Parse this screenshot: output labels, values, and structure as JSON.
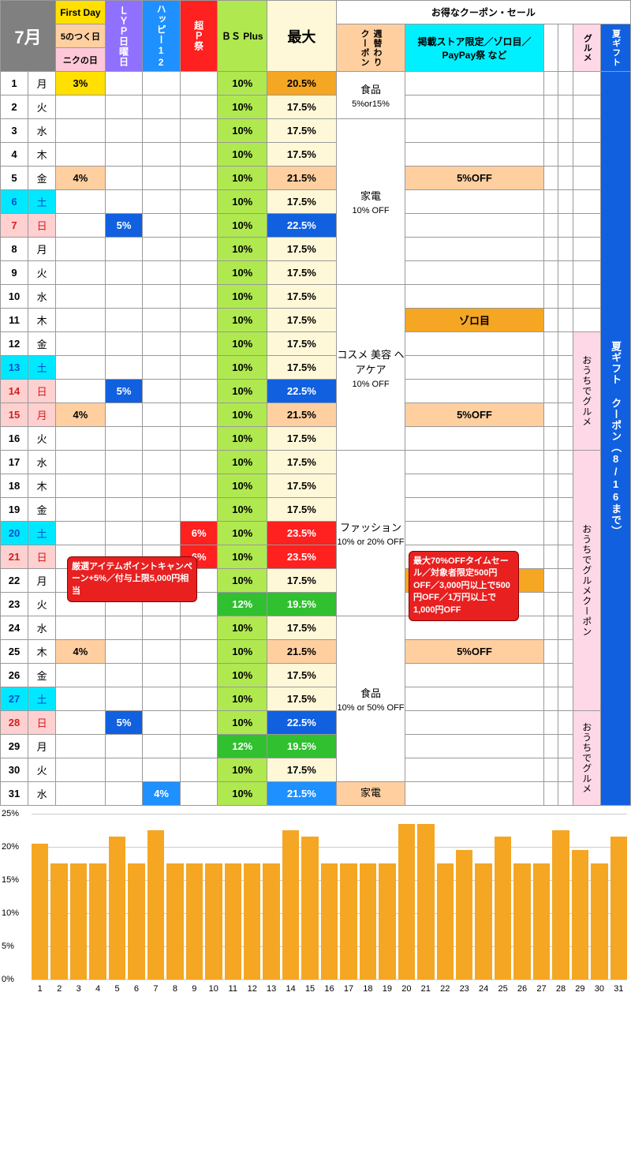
{
  "colors": {
    "gray": "#808080",
    "yellow": "#ffe000",
    "pink": "#ffc8d8",
    "purple": "#9070ff",
    "blue": "#1e90ff",
    "bluedk": "#1060e0",
    "red": "#ff2020",
    "lime": "#b0e850",
    "green": "#30c030",
    "cream": "#fff8d8",
    "peach": "#ffcfa0",
    "orange": "#f5a623",
    "cyan": "#00f0ff",
    "lightpink": "#ffd8e8",
    "white": "#ffffff",
    "sat": "#00e8ff",
    "sun": "#ffd0d0",
    "txtred": "#d02020",
    "txtblue": "#0050d0"
  },
  "month": "7月",
  "hdr": {
    "firstday": "First Day",
    "five": "5のつく日",
    "niku": "ニクの日",
    "lyp": "ＬＹＰ日曜日",
    "happy": "ハッピー12",
    "chop": "超Ｐ祭",
    "bsplus": "ＢＳ Plus",
    "max": "最大",
    "coupon_title": "お得なクーポン・セール",
    "weekly": "週替わりクーポン",
    "store": "掲載ストア限定／ゾロ目／PayPay祭 など",
    "gourmet": "グルメ",
    "summer": "夏ギフト"
  },
  "days": [
    "月",
    "火",
    "水",
    "木",
    "金",
    "土",
    "日",
    "月",
    "火",
    "水",
    "木",
    "金",
    "土",
    "日",
    "月",
    "火",
    "水",
    "木",
    "金",
    "土",
    "日",
    "月",
    "火",
    "水",
    "木",
    "金",
    "土",
    "日",
    "月",
    "火",
    "水"
  ],
  "rows": [
    {
      "d": 1,
      "c1": "3%",
      "c1c": "yellow",
      "bs": "10%",
      "mx": "20.5%",
      "mxc": "orange"
    },
    {
      "d": 2,
      "bs": "10%",
      "mx": "17.5%",
      "mxc": "cream"
    },
    {
      "d": 3,
      "bs": "10%",
      "mx": "17.5%",
      "mxc": "cream"
    },
    {
      "d": 4,
      "bs": "10%",
      "mx": "17.5%",
      "mxc": "cream"
    },
    {
      "d": 5,
      "c1": "4%",
      "c1c": "peach",
      "bs": "10%",
      "mx": "21.5%",
      "mxc": "peach"
    },
    {
      "d": 6,
      "sat": 1,
      "bs": "10%",
      "mx": "17.5%",
      "mxc": "cream"
    },
    {
      "d": 7,
      "sun": 1,
      "lyp": "5%",
      "bs": "10%",
      "mx": "22.5%",
      "mxc": "bluedk",
      "mxt": "#fff"
    },
    {
      "d": 8,
      "bs": "10%",
      "mx": "17.5%",
      "mxc": "cream"
    },
    {
      "d": 9,
      "bs": "10%",
      "mx": "17.5%",
      "mxc": "cream"
    },
    {
      "d": 10,
      "bs": "10%",
      "mx": "17.5%",
      "mxc": "cream"
    },
    {
      "d": 11,
      "bs": "10%",
      "mx": "17.5%",
      "mxc": "cream"
    },
    {
      "d": 12,
      "bs": "10%",
      "mx": "17.5%",
      "mxc": "cream"
    },
    {
      "d": 13,
      "sat": 1,
      "bs": "10%",
      "mx": "17.5%",
      "mxc": "cream"
    },
    {
      "d": 14,
      "sun": 1,
      "lyp": "5%",
      "bs": "10%",
      "mx": "22.5%",
      "mxc": "bluedk",
      "mxt": "#fff"
    },
    {
      "d": 15,
      "sun": 1,
      "c1": "4%",
      "c1c": "peach",
      "bs": "10%",
      "mx": "21.5%",
      "mxc": "peach"
    },
    {
      "d": 16,
      "bs": "10%",
      "mx": "17.5%",
      "mxc": "cream"
    },
    {
      "d": 17,
      "bs": "10%",
      "mx": "17.5%",
      "mxc": "cream"
    },
    {
      "d": 18,
      "bs": "10%",
      "mx": "17.5%",
      "mxc": "cream"
    },
    {
      "d": 19,
      "bs": "10%",
      "mx": "17.5%",
      "mxc": "cream"
    },
    {
      "d": 20,
      "sat": 1,
      "chop": "6%",
      "bs": "10%",
      "mx": "23.5%",
      "mxc": "red",
      "mxt": "#fff"
    },
    {
      "d": 21,
      "sun": 1,
      "chop": "6%",
      "bs": "10%",
      "mx": "23.5%",
      "mxc": "red",
      "mxt": "#fff"
    },
    {
      "d": 22,
      "bs": "10%",
      "mx": "17.5%",
      "mxc": "cream"
    },
    {
      "d": 23,
      "bs": "12%",
      "bsc": "green",
      "bst": "#fff",
      "mx": "19.5%",
      "mxc": "green",
      "mxt": "#fff"
    },
    {
      "d": 24,
      "bs": "10%",
      "mx": "17.5%",
      "mxc": "cream"
    },
    {
      "d": 25,
      "c1": "4%",
      "c1c": "peach",
      "bs": "10%",
      "mx": "21.5%",
      "mxc": "peach"
    },
    {
      "d": 26,
      "bs": "10%",
      "mx": "17.5%",
      "mxc": "cream"
    },
    {
      "d": 27,
      "sat": 1,
      "bs": "10%",
      "mx": "17.5%",
      "mxc": "cream"
    },
    {
      "d": 28,
      "sun": 1,
      "lyp": "5%",
      "bs": "10%",
      "mx": "22.5%",
      "mxc": "bluedk",
      "mxt": "#fff"
    },
    {
      "d": 29,
      "bs": "12%",
      "bsc": "green",
      "bst": "#fff",
      "mx": "19.5%",
      "mxc": "green",
      "mxt": "#fff"
    },
    {
      "d": 30,
      "bs": "10%",
      "mx": "17.5%",
      "mxc": "cream"
    },
    {
      "d": 31,
      "hap": "4%",
      "bs": "10%",
      "mx": "21.5%",
      "mxc": "blue",
      "mxt": "#fff"
    }
  ],
  "weekly": [
    {
      "from": 1,
      "span": 2,
      "t1": "食品",
      "t2": "5%or15%"
    },
    {
      "from": 3,
      "span": 7,
      "t1": "家電",
      "t2": "10% OFF"
    },
    {
      "from": 10,
      "span": 7,
      "t1": "コスメ 美容 ヘアケア",
      "t2": "10% OFF"
    },
    {
      "from": 17,
      "span": 7,
      "t1": "ファッション",
      "t2": "10% or 20% OFF"
    },
    {
      "from": 24,
      "span": 7,
      "t1": "食品",
      "t2": "10% or 50% OFF"
    },
    {
      "from": 31,
      "span": 1,
      "t1": "家電",
      "t2": "",
      "bg": "peach"
    }
  ],
  "store": [
    {
      "from": 5,
      "span": 1,
      "t": "5%OFF",
      "bg": "peach"
    },
    {
      "from": 11,
      "span": 1,
      "t": "ゾロ目",
      "bg": "orange"
    },
    {
      "from": 15,
      "span": 1,
      "t": "5%OFF",
      "bg": "peach"
    },
    {
      "from": 22,
      "span": 1,
      "t": "ゾロ目",
      "bg": "orange"
    },
    {
      "from": 25,
      "span": 1,
      "t": "5%OFF",
      "bg": "peach"
    }
  ],
  "gourmet": [
    {
      "from": 12,
      "span": 5,
      "t": "おうちでグルメ",
      "bg": "lightpink"
    },
    {
      "from": 17,
      "span": 11,
      "t": "おうちでグルメクーポン",
      "bg": "lightpink"
    },
    {
      "from": 28,
      "span": 4,
      "t": "おうちでグルメ",
      "bg": "lightpink"
    }
  ],
  "summer": {
    "t": "夏ギフト クーポン（8/16まで）",
    "bg": "bluedk"
  },
  "note1": "厳選アイテムポイントキャンペーン+5%／付与上限5,000円相当",
  "note2": "最大70%OFFタイムセール／対象者限定500円OFF／3,000円以上で500円OFF／1万円以上で1,000円OFF",
  "chart": {
    "ymax": 25,
    "ystep": 5,
    "vals": [
      20.5,
      17.5,
      17.5,
      17.5,
      21.5,
      17.5,
      22.5,
      17.5,
      17.5,
      17.5,
      17.5,
      17.5,
      17.5,
      22.5,
      21.5,
      17.5,
      17.5,
      17.5,
      17.5,
      23.5,
      23.5,
      17.5,
      19.5,
      17.5,
      21.5,
      17.5,
      17.5,
      22.5,
      19.5,
      17.5,
      21.5
    ]
  }
}
